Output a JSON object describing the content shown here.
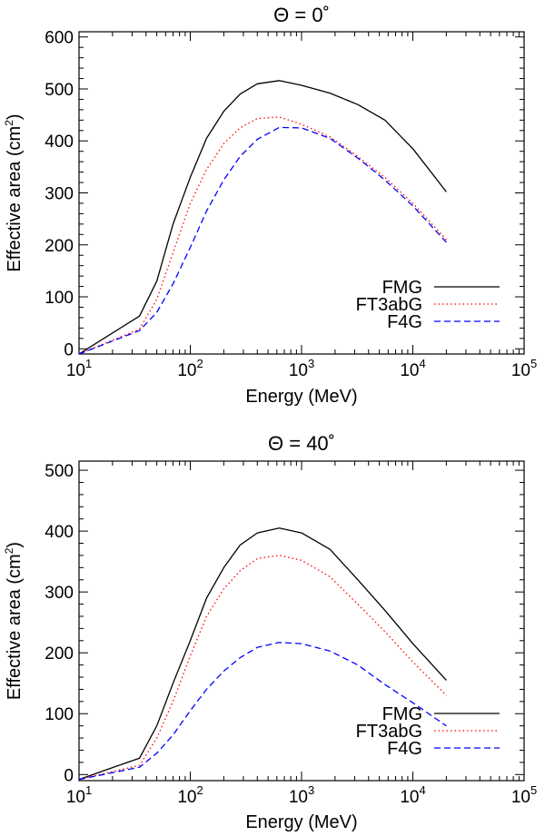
{
  "chart_data": [
    {
      "type": "line",
      "title": "Θ = 0˚",
      "title_symbol": "Θ",
      "title_value": "0",
      "title_degree": "˚",
      "xlabel": "Energy (MeV)",
      "ylabel": "Effective area (cm²)",
      "ylabel_text": "Effective area (cm",
      "ylabel_sup": "2",
      "ylabel_close": ")",
      "xscale": "log",
      "xlim": [
        10,
        100000
      ],
      "ylim": [
        -10,
        610
      ],
      "xticks": [
        10,
        100,
        1000,
        10000,
        100000
      ],
      "xtick_exponents": [
        "1",
        "2",
        "3",
        "4",
        "5"
      ],
      "yticks": [
        0,
        100,
        200,
        300,
        400,
        500,
        600
      ],
      "ytick_labels": [
        "0",
        "100",
        "200",
        "300",
        "400",
        "500",
        "600"
      ],
      "legend_position": "bottom-right",
      "series": [
        {
          "name": "FMG",
          "color": "#000000",
          "dash": "solid",
          "x": [
            10,
            35,
            50,
            70,
            100,
            140,
            200,
            280,
            400,
            630,
            1000,
            1800,
            3200,
            5600,
            10000,
            20000
          ],
          "y": [
            -10,
            63,
            130,
            240,
            330,
            405,
            457,
            490,
            510,
            516,
            507,
            492,
            470,
            440,
            385,
            302
          ]
        },
        {
          "name": "FT3abG",
          "color": "#ff0000",
          "dash": "dotted",
          "x": [
            10,
            35,
            50,
            70,
            100,
            140,
            200,
            280,
            400,
            630,
            1000,
            1800,
            3200,
            5600,
            10000,
            20000
          ],
          "y": [
            -10,
            38,
            95,
            185,
            280,
            345,
            395,
            425,
            443,
            446,
            432,
            408,
            370,
            330,
            280,
            210
          ]
        },
        {
          "name": "F4G",
          "color": "#0000ff",
          "dash": "dashed",
          "x": [
            10,
            35,
            50,
            70,
            100,
            140,
            200,
            280,
            400,
            630,
            1000,
            1800,
            3200,
            5600,
            10000,
            20000
          ],
          "y": [
            -10,
            35,
            70,
            125,
            195,
            265,
            325,
            370,
            403,
            426,
            425,
            405,
            367,
            325,
            275,
            205
          ]
        }
      ]
    },
    {
      "type": "line",
      "title": "Θ = 40˚",
      "title_symbol": "Θ",
      "title_value": "40",
      "title_degree": "˚",
      "xlabel": "Energy (MeV)",
      "ylabel": "Effective area (cm²)",
      "ylabel_text": "Effective area (cm",
      "ylabel_sup": "2",
      "ylabel_close": ")",
      "xscale": "log",
      "xlim": [
        10,
        100000
      ],
      "ylim": [
        -10,
        515
      ],
      "xticks": [
        10,
        100,
        1000,
        10000,
        100000
      ],
      "xtick_exponents": [
        "1",
        "2",
        "3",
        "4",
        "5"
      ],
      "yticks": [
        0,
        100,
        200,
        300,
        400,
        500
      ],
      "ytick_labels": [
        "0",
        "100",
        "200",
        "300",
        "400",
        "500"
      ],
      "legend_position": "bottom-right",
      "series": [
        {
          "name": "FMG",
          "color": "#000000",
          "dash": "solid",
          "x": [
            10,
            35,
            50,
            70,
            100,
            140,
            200,
            280,
            400,
            630,
            1000,
            1800,
            3200,
            5600,
            10000,
            20000
          ],
          "y": [
            -8,
            27,
            80,
            150,
            220,
            290,
            340,
            377,
            397,
            405,
            397,
            370,
            320,
            270,
            215,
            155
          ]
        },
        {
          "name": "FT3abG",
          "color": "#ff0000",
          "dash": "dotted",
          "x": [
            10,
            35,
            50,
            70,
            100,
            140,
            200,
            280,
            400,
            630,
            1000,
            1800,
            3200,
            5600,
            10000,
            20000
          ],
          "y": [
            -8,
            15,
            60,
            120,
            195,
            260,
            305,
            335,
            355,
            360,
            352,
            325,
            280,
            235,
            185,
            130
          ]
        },
        {
          "name": "F4G",
          "color": "#0000ff",
          "dash": "dashed",
          "x": [
            10,
            35,
            50,
            70,
            100,
            140,
            200,
            280,
            400,
            630,
            1000,
            1800,
            3200,
            5600,
            10000,
            20000
          ],
          "y": [
            -8,
            12,
            35,
            65,
            105,
            140,
            170,
            192,
            209,
            217,
            215,
            203,
            180,
            148,
            118,
            80
          ]
        }
      ]
    }
  ]
}
